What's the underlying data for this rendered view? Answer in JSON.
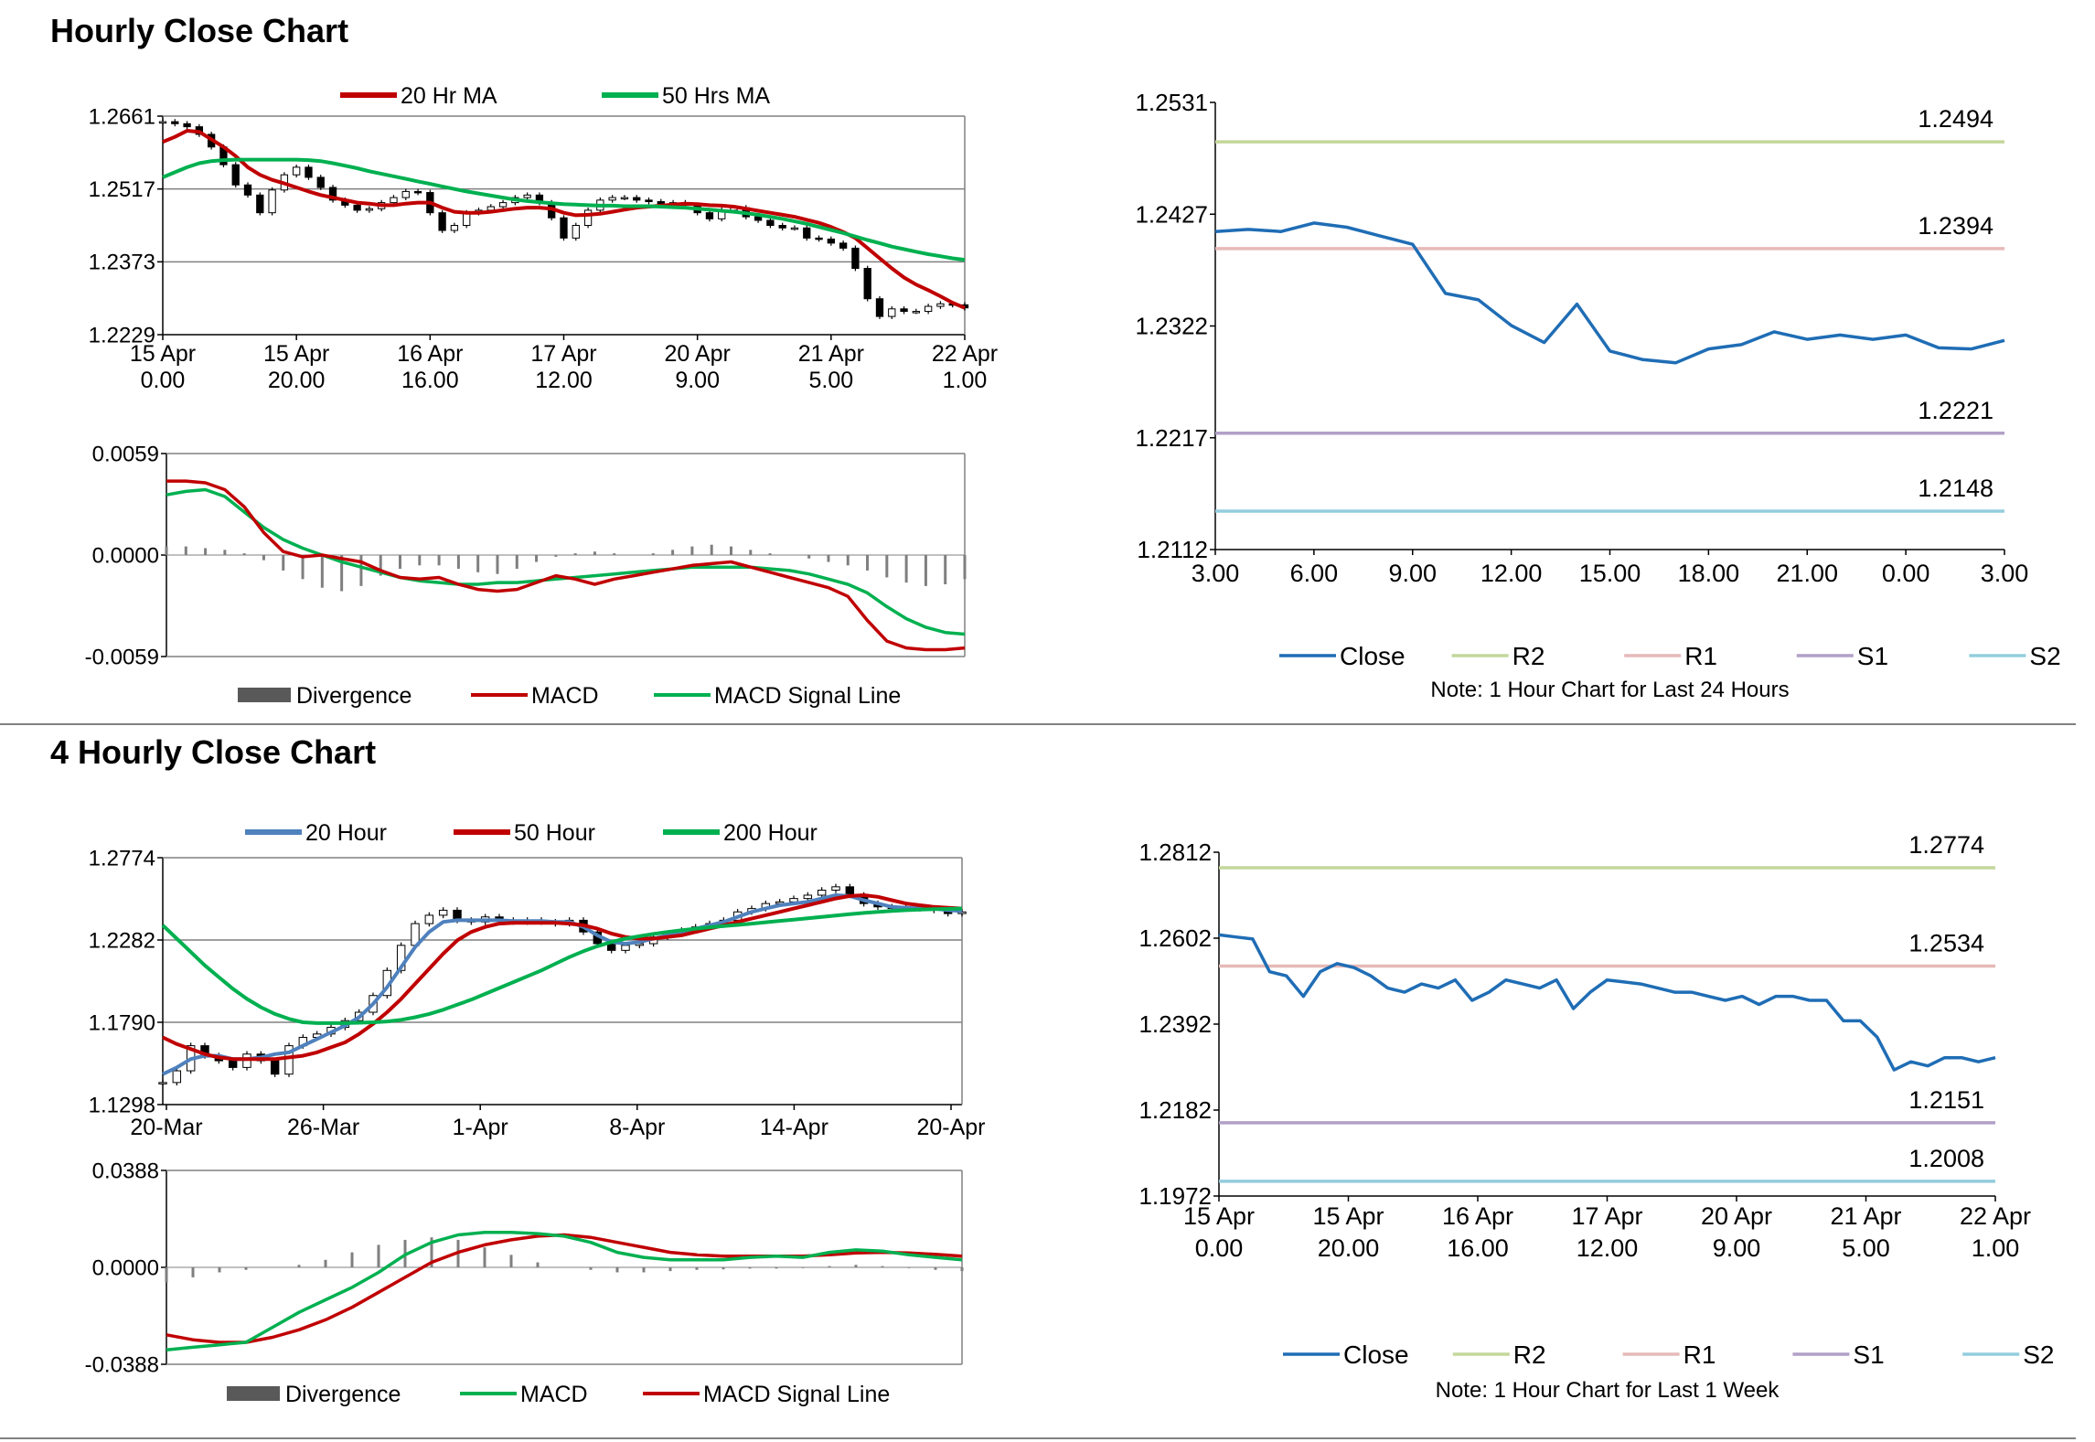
{
  "colors": {
    "ma20": "#c00000",
    "ma50": "#00b050",
    "ma20_blue": "#4f81bd",
    "close": "#1f6db5",
    "r2": "#c4d79b",
    "r1": "#e6b9b8",
    "s1": "#b1a0c7",
    "s2": "#93cddd",
    "candle": "#000000",
    "divergence": "#7f7f7f",
    "grid": "#808080"
  },
  "sections": [
    {
      "title": "Hourly Close Chart"
    },
    {
      "title": "4 Hourly Close Chart"
    }
  ],
  "chart_data": [
    {
      "id": "hourly_price",
      "type": "candlestick",
      "legend": [
        "20 Hr MA",
        "50 Hrs MA"
      ],
      "y_ticks": [
        "1.2661",
        "1.2517",
        "1.2373",
        "1.2229"
      ],
      "ylim": [
        1.2229,
        1.2661
      ],
      "x_ticks": [
        [
          "15 Apr",
          "0.00"
        ],
        [
          "15 Apr",
          "20.00"
        ],
        [
          "16 Apr",
          "16.00"
        ],
        [
          "17 Apr",
          "12.00"
        ],
        [
          "20 Apr",
          "9.00"
        ],
        [
          "21 Apr",
          "5.00"
        ],
        [
          "22 Apr",
          "1.00"
        ]
      ],
      "close": [
        1.265,
        1.2646,
        1.264,
        1.2625,
        1.26,
        1.2565,
        1.2525,
        1.2505,
        1.247,
        1.2515,
        1.2545,
        1.256,
        1.254,
        1.252,
        1.2495,
        1.2485,
        1.2475,
        1.2478,
        1.249,
        1.25,
        1.2512,
        1.251,
        1.247,
        1.2435,
        1.2445,
        1.247,
        1.2475,
        1.2482,
        1.249,
        1.25,
        1.2505,
        1.249,
        1.246,
        1.242,
        1.2445,
        1.2475,
        1.2495,
        1.25,
        1.25,
        1.2495,
        1.2492,
        1.2488,
        1.249,
        1.2485,
        1.247,
        1.2458,
        1.2475,
        1.248,
        1.2462,
        1.2455,
        1.2445,
        1.244,
        1.244,
        1.242,
        1.2418,
        1.241,
        1.24,
        1.236,
        1.23,
        1.2265,
        1.228,
        1.2275,
        1.2275,
        1.2285,
        1.229,
        1.2288,
        1.2282
      ],
      "ma20": [
        1.261,
        1.262,
        1.2632,
        1.263,
        1.2615,
        1.26,
        1.2582,
        1.256,
        1.2545,
        1.2535,
        1.2528,
        1.252,
        1.2512,
        1.2505,
        1.25,
        1.2495,
        1.249,
        1.2488,
        1.2485,
        1.2485,
        1.2488,
        1.249,
        1.249,
        1.248,
        1.2472,
        1.247,
        1.247,
        1.2472,
        1.2475,
        1.2478,
        1.248,
        1.248,
        1.2478,
        1.247,
        1.2465,
        1.2466,
        1.2468,
        1.2472,
        1.2476,
        1.248,
        1.2482,
        1.2484,
        1.2486,
        1.2488,
        1.2487,
        1.2485,
        1.2484,
        1.2482,
        1.2478,
        1.2474,
        1.247,
        1.2466,
        1.2462,
        1.2456,
        1.245,
        1.2442,
        1.2432,
        1.242,
        1.24,
        1.238,
        1.236,
        1.2342,
        1.2328,
        1.2317,
        1.2305,
        1.2292,
        1.2282
      ],
      "ma50": [
        1.254,
        1.255,
        1.256,
        1.2568,
        1.2572,
        1.2574,
        1.2575,
        1.2575,
        1.2575,
        1.2575,
        1.2575,
        1.2575,
        1.2574,
        1.2572,
        1.2568,
        1.2563,
        1.2558,
        1.2552,
        1.2547,
        1.2542,
        1.2537,
        1.2532,
        1.2527,
        1.2522,
        1.2517,
        1.2512,
        1.2508,
        1.2504,
        1.25,
        1.2496,
        1.2493,
        1.2491,
        1.2489,
        1.2487,
        1.2486,
        1.2485,
        1.2484,
        1.2484,
        1.2483,
        1.2483,
        1.2483,
        1.2482,
        1.2481,
        1.248,
        1.2478,
        1.2476,
        1.2474,
        1.2472,
        1.2469,
        1.2466,
        1.2462,
        1.2458,
        1.2453,
        1.2448,
        1.2442,
        1.2436,
        1.243,
        1.2423,
        1.2416,
        1.241,
        1.2403,
        1.2398,
        1.2393,
        1.2388,
        1.2384,
        1.238,
        1.2377
      ]
    },
    {
      "id": "hourly_macd",
      "type": "macd",
      "y_ticks": [
        "0.0059",
        "0.0000",
        "-0.0059"
      ],
      "ylim": [
        -0.0059,
        0.0059
      ],
      "legend": [
        "Divergence",
        "MACD",
        "MACD Signal Line"
      ],
      "macd": [
        0.0043,
        0.0043,
        0.0042,
        0.0038,
        0.0028,
        0.0013,
        0.0002,
        -0.0001,
        0.0,
        -0.0002,
        -0.0004,
        -0.0009,
        -0.0013,
        -0.0014,
        -0.0013,
        -0.0017,
        -0.002,
        -0.0021,
        -0.002,
        -0.0016,
        -0.0012,
        -0.0014,
        -0.0017,
        -0.0014,
        -0.0012,
        -0.001,
        -0.0008,
        -0.0006,
        -0.0005,
        -0.0004,
        -0.0007,
        -0.001,
        -0.0013,
        -0.0016,
        -0.0019,
        -0.0024,
        -0.0038,
        -0.005,
        -0.0054,
        -0.0055,
        -0.0055,
        -0.0054
      ],
      "signal": [
        0.0035,
        0.0037,
        0.0038,
        0.0034,
        0.0025,
        0.0016,
        0.0009,
        0.0004,
        0.0,
        -0.0004,
        -0.0007,
        -0.001,
        -0.0013,
        -0.0015,
        -0.0016,
        -0.0017,
        -0.0017,
        -0.0016,
        -0.0016,
        -0.0015,
        -0.0014,
        -0.0013,
        -0.0012,
        -0.0011,
        -0.001,
        -0.0009,
        -0.0008,
        -0.0007,
        -0.0007,
        -0.0007,
        -0.0007,
        -0.0008,
        -0.0009,
        -0.0011,
        -0.0014,
        -0.0017,
        -0.0022,
        -0.003,
        -0.0037,
        -0.0042,
        -0.0045,
        -0.0046
      ],
      "divergence": [
        0.0005,
        0.0005,
        0.0004,
        0.0003,
        0.0001,
        -0.0003,
        -0.0009,
        -0.0014,
        -0.0019,
        -0.0021,
        -0.0018,
        -0.0012,
        -0.0008,
        -0.0006,
        -0.0006,
        -0.0008,
        -0.001,
        -0.0011,
        -0.0008,
        -0.0004,
        -0.0001,
        0.0001,
        0.0002,
        0.0001,
        0.0,
        0.0001,
        0.0003,
        0.0005,
        0.0006,
        0.0005,
        0.0003,
        0.0001,
        0.0,
        -0.0002,
        -0.0004,
        -0.0006,
        -0.0009,
        -0.0013,
        -0.0016,
        -0.0018,
        -0.0017,
        -0.0014
      ]
    },
    {
      "id": "hourly_close_24h",
      "type": "line",
      "y_ticks": [
        "1.2531",
        "1.2427",
        "1.2322",
        "1.2217",
        "1.2112"
      ],
      "ylim": [
        1.2112,
        1.2531
      ],
      "x_ticks": [
        "3.00",
        "6.00",
        "9.00",
        "12.00",
        "15.00",
        "18.00",
        "21.00",
        "0.00",
        "3.00"
      ],
      "close": [
        1.241,
        1.2412,
        1.241,
        1.2418,
        1.2414,
        1.2406,
        1.2398,
        1.2352,
        1.2346,
        1.2322,
        1.2306,
        1.2342,
        1.2298,
        1.229,
        1.2287,
        1.23,
        1.2304,
        1.2316,
        1.2309,
        1.2313,
        1.2309,
        1.2313,
        1.2301,
        1.23,
        1.2308
      ],
      "levels": [
        {
          "name": "R2",
          "value": 1.2494,
          "label": "1.2494"
        },
        {
          "name": "R1",
          "value": 1.2394,
          "label": "1.2394"
        },
        {
          "name": "S1",
          "value": 1.2221,
          "label": "1.2221"
        },
        {
          "name": "S2",
          "value": 1.2148,
          "label": "1.2148"
        }
      ],
      "legend": [
        "Close",
        "R2",
        "R1",
        "S1",
        "S2"
      ],
      "note": "Note: 1 Hour Chart for Last 24 Hours"
    },
    {
      "id": "four_hourly_price",
      "type": "candlestick",
      "legend": [
        "20 Hour",
        "50 Hour",
        "200 Hour"
      ],
      "y_ticks": [
        "1.2774",
        "1.2282",
        "1.1790",
        "1.1298"
      ],
      "ylim": [
        1.1298,
        1.2774
      ],
      "x_ticks": [
        "20-Mar",
        "26-Mar",
        "1-Apr",
        "8-Apr",
        "14-Apr",
        "20-Apr"
      ],
      "close": [
        1.143,
        1.15,
        1.165,
        1.159,
        1.156,
        1.152,
        1.16,
        1.156,
        1.148,
        1.165,
        1.17,
        1.172,
        1.176,
        1.18,
        1.185,
        1.195,
        1.21,
        1.225,
        1.238,
        1.243,
        1.246,
        1.24,
        1.239,
        1.242,
        1.24,
        1.239,
        1.24,
        1.239,
        1.238,
        1.24,
        1.233,
        1.226,
        1.222,
        1.225,
        1.226,
        1.23,
        1.232,
        1.234,
        1.236,
        1.238,
        1.24,
        1.245,
        1.247,
        1.25,
        1.251,
        1.253,
        1.255,
        1.258,
        1.26,
        1.255,
        1.25,
        1.248,
        1.247,
        1.248,
        1.247,
        1.246,
        1.244,
        1.245
      ],
      "ma20": [
        1.148,
        1.152,
        1.157,
        1.159,
        1.159,
        1.157,
        1.157,
        1.158,
        1.16,
        1.161,
        1.165,
        1.169,
        1.173,
        1.177,
        1.182,
        1.19,
        1.2,
        1.212,
        1.224,
        1.233,
        1.239,
        1.24,
        1.24,
        1.24,
        1.24,
        1.2395,
        1.2395,
        1.2395,
        1.239,
        1.239,
        1.236,
        1.231,
        1.227,
        1.226,
        1.227,
        1.229,
        1.231,
        1.233,
        1.235,
        1.237,
        1.239,
        1.242,
        1.245,
        1.247,
        1.249,
        1.25,
        1.251,
        1.253,
        1.255,
        1.2545,
        1.252,
        1.25,
        1.248,
        1.2475,
        1.247,
        1.247,
        1.246,
        1.2455
      ],
      "ma50": [
        1.17,
        1.166,
        1.163,
        1.16,
        1.158,
        1.157,
        1.157,
        1.157,
        1.157,
        1.158,
        1.159,
        1.161,
        1.164,
        1.167,
        1.172,
        1.178,
        1.185,
        1.193,
        1.202,
        1.211,
        1.22,
        1.228,
        1.233,
        1.236,
        1.238,
        1.2385,
        1.2385,
        1.2385,
        1.2385,
        1.238,
        1.237,
        1.235,
        1.232,
        1.23,
        1.229,
        1.229,
        1.23,
        1.231,
        1.233,
        1.235,
        1.237,
        1.239,
        1.241,
        1.243,
        1.245,
        1.247,
        1.249,
        1.251,
        1.253,
        1.2545,
        1.255,
        1.254,
        1.252,
        1.25,
        1.249,
        1.248,
        1.2475,
        1.247
      ],
      "ma200": [
        1.237,
        1.229,
        1.221,
        1.213,
        1.206,
        1.199,
        1.193,
        1.188,
        1.184,
        1.181,
        1.179,
        1.1785,
        1.1785,
        1.1785,
        1.1787,
        1.179,
        1.1795,
        1.1805,
        1.182,
        1.184,
        1.1865,
        1.1895,
        1.1925,
        1.196,
        1.1995,
        1.203,
        1.2065,
        1.21,
        1.214,
        1.218,
        1.2215,
        1.2245,
        1.227,
        1.229,
        1.2305,
        1.2318,
        1.233,
        1.234,
        1.235,
        1.2358,
        1.2365,
        1.2372,
        1.238,
        1.2388,
        1.2396,
        1.2404,
        1.2412,
        1.242,
        1.2428,
        1.2436,
        1.2444,
        1.245,
        1.2456,
        1.246,
        1.2464,
        1.2466,
        1.2468,
        1.247
      ]
    },
    {
      "id": "four_hourly_macd",
      "type": "macd",
      "y_ticks": [
        "0.0388",
        "0.0000",
        "-0.0388"
      ],
      "ylim": [
        -0.0388,
        0.0388
      ],
      "legend": [
        "Divergence",
        "MACD",
        "MACD Signal Line"
      ],
      "macd": [
        -0.033,
        -0.032,
        -0.031,
        -0.03,
        -0.024,
        -0.018,
        -0.013,
        -0.008,
        -0.002,
        0.005,
        0.01,
        0.013,
        0.014,
        0.014,
        0.0135,
        0.0125,
        0.01,
        0.006,
        0.004,
        0.003,
        0.003,
        0.003,
        0.004,
        0.0045,
        0.004,
        0.006,
        0.007,
        0.0065,
        0.005,
        0.004,
        0.003
      ],
      "signal": [
        -0.027,
        -0.029,
        -0.03,
        -0.03,
        -0.028,
        -0.025,
        -0.021,
        -0.016,
        -0.01,
        -0.004,
        0.002,
        0.006,
        0.009,
        0.011,
        0.0125,
        0.013,
        0.012,
        0.01,
        0.008,
        0.006,
        0.005,
        0.0045,
        0.0045,
        0.0045,
        0.0045,
        0.005,
        0.0058,
        0.006,
        0.0058,
        0.0052,
        0.0045
      ],
      "divergence": [
        -0.006,
        -0.004,
        -0.002,
        -0.001,
        0.0,
        0.001,
        0.003,
        0.006,
        0.009,
        0.011,
        0.012,
        0.011,
        0.008,
        0.005,
        0.002,
        0.0,
        -0.001,
        -0.002,
        -0.002,
        -0.0015,
        -0.001,
        -0.0008,
        -0.0005,
        -0.0005,
        -0.0003,
        0.0005,
        0.001,
        0.0005,
        -0.0003,
        -0.001,
        -0.0015
      ]
    },
    {
      "id": "hourly_close_week",
      "type": "line",
      "y_ticks": [
        "1.2812",
        "1.2602",
        "1.2392",
        "1.2182",
        "1.1972"
      ],
      "ylim": [
        1.1972,
        1.2812
      ],
      "x_ticks": [
        [
          "15 Apr",
          "0.00"
        ],
        [
          "15 Apr",
          "20.00"
        ],
        [
          "16 Apr",
          "16.00"
        ],
        [
          "17 Apr",
          "12.00"
        ],
        [
          "20 Apr",
          "9.00"
        ],
        [
          "21 Apr",
          "5.00"
        ],
        [
          "22 Apr",
          "1.00"
        ]
      ],
      "close": [
        1.261,
        1.2605,
        1.26,
        1.252,
        1.251,
        1.246,
        1.252,
        1.254,
        1.253,
        1.251,
        1.248,
        1.247,
        1.249,
        1.248,
        1.25,
        1.245,
        1.247,
        1.25,
        1.249,
        1.248,
        1.25,
        1.243,
        1.247,
        1.25,
        1.2495,
        1.249,
        1.248,
        1.247,
        1.247,
        1.246,
        1.245,
        1.246,
        1.244,
        1.246,
        1.246,
        1.245,
        1.245,
        1.24,
        1.24,
        1.236,
        1.228,
        1.23,
        1.229,
        1.231,
        1.231,
        1.23,
        1.231
      ],
      "levels": [
        {
          "name": "R2",
          "value": 1.2774,
          "label": "1.2774"
        },
        {
          "name": "R1",
          "value": 1.2534,
          "label": "1.2534"
        },
        {
          "name": "S1",
          "value": 1.2151,
          "label": "1.2151"
        },
        {
          "name": "S2",
          "value": 1.2008,
          "label": "1.2008"
        }
      ],
      "legend": [
        "Close",
        "R2",
        "R1",
        "S1",
        "S2"
      ],
      "note": "Note: 1 Hour Chart for Last 1 Week"
    }
  ]
}
